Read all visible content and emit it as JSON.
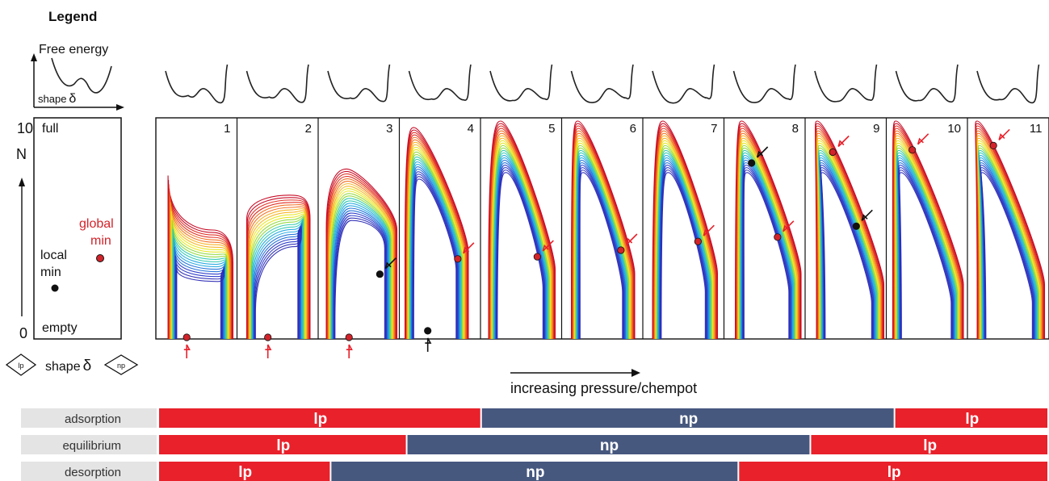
{
  "legend": {
    "title": "Legend",
    "free_energy_label": "Free energy",
    "shape_label": "shape",
    "delta_symbol": "δ",
    "n_axis_label": "N",
    "n_max": "10",
    "n_min": "0",
    "full_label": "full",
    "empty_label": "empty",
    "local_min_line1": "local",
    "local_min_line2": "min",
    "global_min_line1": "global",
    "global_min_line2": "min",
    "lp_symbol": "lp",
    "np_symbol": "np"
  },
  "panels": [
    "1",
    "2",
    "3",
    "4",
    "5",
    "6",
    "7",
    "8",
    "9",
    "10",
    "11"
  ],
  "pressure_label": "increasing pressure/chempot",
  "bars": [
    {
      "label": "adsorption",
      "segments": [
        {
          "phase": "lp",
          "start": 0,
          "end": 3.99
        },
        {
          "phase": "np",
          "start": 3.99,
          "end": 9.1
        },
        {
          "phase": "lp",
          "start": 9.1,
          "end": 11
        }
      ]
    },
    {
      "label": "equilibrium",
      "segments": [
        {
          "phase": "lp",
          "start": 0,
          "end": 3.07
        },
        {
          "phase": "np",
          "start": 3.07,
          "end": 8.06
        },
        {
          "phase": "lp",
          "start": 8.06,
          "end": 11
        }
      ]
    },
    {
      "label": "desorption",
      "segments": [
        {
          "phase": "lp",
          "start": 0,
          "end": 2.13
        },
        {
          "phase": "np",
          "start": 2.13,
          "end": 7.17
        },
        {
          "phase": "lp",
          "start": 7.17,
          "end": 11
        }
      ]
    }
  ],
  "colors": {
    "lp": "#e8212b",
    "np": "#47587f",
    "label_bg": "#e4e4e4",
    "global_min": "#d2232a",
    "local_min": "#111111",
    "arrow_red": "#e8212b"
  }
}
